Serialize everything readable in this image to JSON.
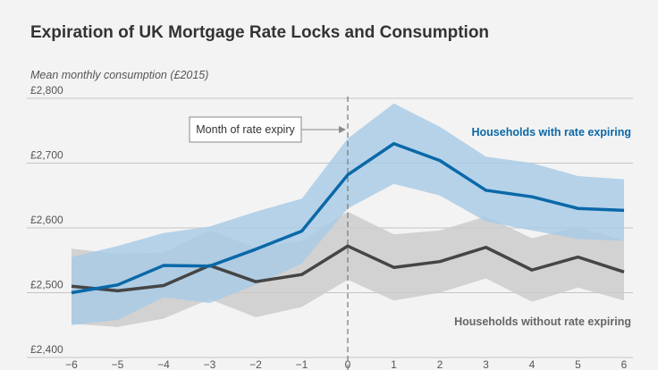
{
  "chart_data": {
    "type": "line",
    "title": "Expiration of UK Mortgage Rate Locks and Consumption",
    "ylabel": "Mean monthly consumption (£2015)",
    "xlabel": "",
    "x": [
      -6,
      -5,
      -4,
      -3,
      -2,
      -1,
      0,
      1,
      2,
      3,
      4,
      5,
      6
    ],
    "xticks": [
      "−6",
      "−5",
      "−4",
      "−3",
      "−2",
      "−1",
      "0",
      "1",
      "2",
      "3",
      "4",
      "5",
      "6"
    ],
    "yticks": [
      2400,
      2500,
      2600,
      2700,
      2800
    ],
    "ytick_labels": [
      "£2,400",
      "£2,500",
      "£2,600",
      "£2,700",
      "£2,800"
    ],
    "ylim": [
      2400,
      2800
    ],
    "grid": true,
    "series": [
      {
        "name": "Households with rate expiring",
        "color": "#0a68a8",
        "band_color": "#a9cbe6",
        "values": [
          2500,
          2512,
          2542,
          2541,
          2567,
          2595,
          2682,
          2730,
          2704,
          2658,
          2648,
          2630,
          2627
        ],
        "upper": [
          2555,
          2572,
          2592,
          2602,
          2625,
          2645,
          2738,
          2792,
          2756,
          2710,
          2700,
          2680,
          2675
        ],
        "lower": [
          2450,
          2458,
          2493,
          2484,
          2512,
          2545,
          2630,
          2668,
          2650,
          2610,
          2596,
          2583,
          2580
        ]
      },
      {
        "name": "Households without rate expiring",
        "color": "#454545",
        "band_color": "#cbcbcb",
        "values": [
          2510,
          2503,
          2511,
          2542,
          2517,
          2528,
          2572,
          2539,
          2548,
          2570,
          2535,
          2555,
          2532
        ],
        "upper": [
          2568,
          2560,
          2562,
          2596,
          2570,
          2580,
          2625,
          2590,
          2596,
          2618,
          2584,
          2602,
          2580
        ],
        "lower": [
          2452,
          2447,
          2460,
          2490,
          2462,
          2478,
          2520,
          2488,
          2500,
          2522,
          2486,
          2508,
          2488
        ]
      }
    ],
    "annotation": {
      "text": "Month of rate expiry",
      "x": 0
    }
  }
}
